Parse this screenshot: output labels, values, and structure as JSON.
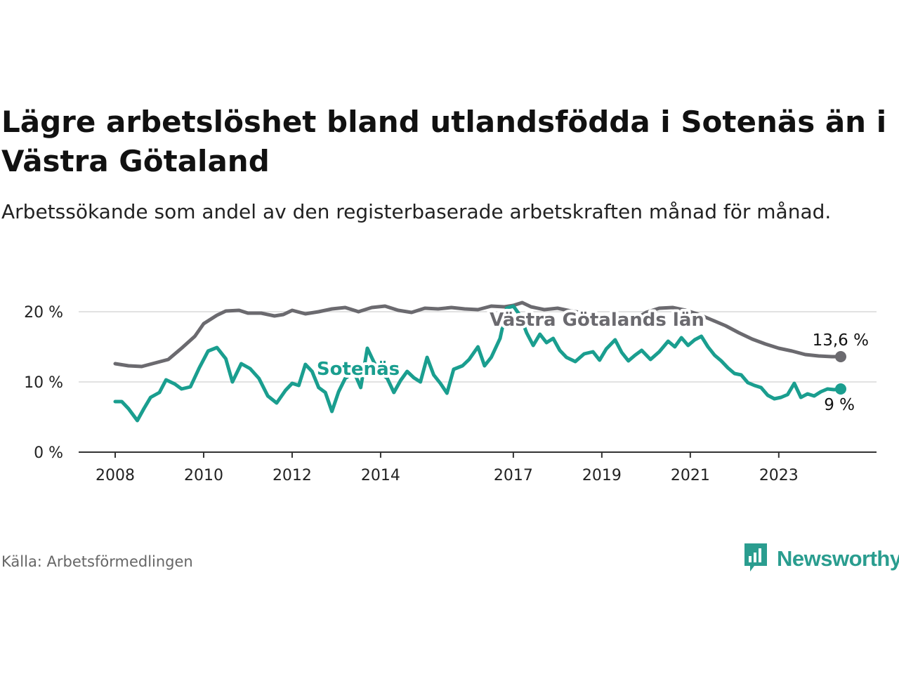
{
  "title": "Lägre arbetslöshet bland utlandsfödda i Sotenäs än i Västra Götaland",
  "subtitle": "Arbetssökande som andel av den registerbaserade arbetskraften månad för månad.",
  "source": "Källa: Arbetsförmedlingen",
  "brand": {
    "name": "Newsworthy",
    "icon": "newsworthy-logo-icon",
    "color": "#2a9d8f"
  },
  "chart_data": {
    "type": "line",
    "title": "Lägre arbetslöshet bland utlandsfödda i Sotenäs än i Västra Götaland",
    "xlabel": "",
    "ylabel": "",
    "ylim": [
      0,
      22
    ],
    "xlim": [
      2008,
      2024.6
    ],
    "y_ticks": [
      {
        "value": 0,
        "label": "0 %"
      },
      {
        "value": 10,
        "label": "10 %"
      },
      {
        "value": 20,
        "label": "20 %"
      }
    ],
    "x_ticks": [
      {
        "value": 2008,
        "label": "2008"
      },
      {
        "value": 2010,
        "label": "2010"
      },
      {
        "value": 2012,
        "label": "2012"
      },
      {
        "value": 2014,
        "label": "2014"
      },
      {
        "value": 2017,
        "label": "2017"
      },
      {
        "value": 2019,
        "label": "2019"
      },
      {
        "value": 2021,
        "label": "2021"
      },
      {
        "value": 2023,
        "label": "2023"
      }
    ],
    "grid": true,
    "series": [
      {
        "name": "Västra Götalands län",
        "color": "#6b6a6f",
        "end_label": "13,6 %",
        "points": [
          [
            2008.0,
            12.6
          ],
          [
            2008.3,
            12.3
          ],
          [
            2008.6,
            12.2
          ],
          [
            2008.9,
            12.7
          ],
          [
            2009.2,
            13.2
          ],
          [
            2009.5,
            14.8
          ],
          [
            2009.8,
            16.5
          ],
          [
            2010.0,
            18.3
          ],
          [
            2010.3,
            19.5
          ],
          [
            2010.5,
            20.1
          ],
          [
            2010.8,
            20.2
          ],
          [
            2011.0,
            19.8
          ],
          [
            2011.3,
            19.8
          ],
          [
            2011.6,
            19.4
          ],
          [
            2011.8,
            19.6
          ],
          [
            2012.0,
            20.2
          ],
          [
            2012.3,
            19.7
          ],
          [
            2012.6,
            20.0
          ],
          [
            2012.9,
            20.4
          ],
          [
            2013.2,
            20.6
          ],
          [
            2013.5,
            20.0
          ],
          [
            2013.8,
            20.6
          ],
          [
            2014.1,
            20.8
          ],
          [
            2014.4,
            20.2
          ],
          [
            2014.7,
            19.9
          ],
          [
            2015.0,
            20.5
          ],
          [
            2015.3,
            20.4
          ],
          [
            2015.6,
            20.6
          ],
          [
            2015.9,
            20.4
          ],
          [
            2016.2,
            20.3
          ],
          [
            2016.5,
            20.8
          ],
          [
            2016.8,
            20.7
          ],
          [
            2017.0,
            20.9
          ],
          [
            2017.2,
            21.3
          ],
          [
            2017.4,
            20.7
          ],
          [
            2017.7,
            20.3
          ],
          [
            2018.0,
            20.5
          ],
          [
            2018.3,
            20.1
          ],
          [
            2018.6,
            19.8
          ],
          [
            2018.9,
            19.4
          ],
          [
            2019.2,
            19.4
          ],
          [
            2019.5,
            19.0
          ],
          [
            2019.8,
            19.1
          ],
          [
            2020.0,
            19.9
          ],
          [
            2020.3,
            20.5
          ],
          [
            2020.6,
            20.6
          ],
          [
            2020.9,
            20.2
          ],
          [
            2021.2,
            19.6
          ],
          [
            2021.5,
            18.8
          ],
          [
            2021.8,
            18.0
          ],
          [
            2022.1,
            17.0
          ],
          [
            2022.4,
            16.1
          ],
          [
            2022.7,
            15.4
          ],
          [
            2023.0,
            14.8
          ],
          [
            2023.3,
            14.4
          ],
          [
            2023.6,
            13.9
          ],
          [
            2023.9,
            13.7
          ],
          [
            2024.2,
            13.6
          ],
          [
            2024.4,
            13.6
          ]
        ]
      },
      {
        "name": "Sotenäs",
        "color": "#1a9e8f",
        "end_label": "9 %",
        "points": [
          [
            2008.0,
            7.2
          ],
          [
            2008.15,
            7.2
          ],
          [
            2008.3,
            6.2
          ],
          [
            2008.5,
            4.5
          ],
          [
            2008.65,
            6.2
          ],
          [
            2008.8,
            7.8
          ],
          [
            2009.0,
            8.5
          ],
          [
            2009.15,
            10.3
          ],
          [
            2009.35,
            9.7
          ],
          [
            2009.5,
            9.0
          ],
          [
            2009.7,
            9.3
          ],
          [
            2009.9,
            12.0
          ],
          [
            2010.1,
            14.4
          ],
          [
            2010.3,
            14.9
          ],
          [
            2010.5,
            13.3
          ],
          [
            2010.65,
            10.0
          ],
          [
            2010.85,
            12.6
          ],
          [
            2011.05,
            11.9
          ],
          [
            2011.25,
            10.5
          ],
          [
            2011.45,
            8.0
          ],
          [
            2011.65,
            7.0
          ],
          [
            2011.85,
            8.8
          ],
          [
            2012.0,
            9.8
          ],
          [
            2012.15,
            9.5
          ],
          [
            2012.3,
            12.5
          ],
          [
            2012.45,
            11.5
          ],
          [
            2012.6,
            9.2
          ],
          [
            2012.75,
            8.5
          ],
          [
            2012.9,
            5.8
          ],
          [
            2013.05,
            8.6
          ],
          [
            2013.2,
            10.5
          ],
          [
            2013.4,
            11.4
          ],
          [
            2013.55,
            9.2
          ],
          [
            2013.7,
            14.8
          ],
          [
            2013.85,
            12.8
          ],
          [
            2014.0,
            11.3
          ],
          [
            2014.15,
            10.5
          ],
          [
            2014.3,
            8.5
          ],
          [
            2014.45,
            10.2
          ],
          [
            2014.6,
            11.5
          ],
          [
            2014.75,
            10.6
          ],
          [
            2014.9,
            10.0
          ],
          [
            2015.05,
            13.5
          ],
          [
            2015.2,
            11.0
          ],
          [
            2015.35,
            9.8
          ],
          [
            2015.5,
            8.4
          ],
          [
            2015.65,
            11.8
          ],
          [
            2015.85,
            12.3
          ],
          [
            2016.0,
            13.2
          ],
          [
            2016.2,
            15.0
          ],
          [
            2016.35,
            12.3
          ],
          [
            2016.5,
            13.5
          ],
          [
            2016.7,
            16.2
          ],
          [
            2016.85,
            20.5
          ],
          [
            2017.0,
            20.8
          ],
          [
            2017.15,
            19.5
          ],
          [
            2017.3,
            17.0
          ],
          [
            2017.45,
            15.2
          ],
          [
            2017.6,
            16.8
          ],
          [
            2017.75,
            15.6
          ],
          [
            2017.9,
            16.2
          ],
          [
            2018.05,
            14.5
          ],
          [
            2018.2,
            13.5
          ],
          [
            2018.4,
            12.9
          ],
          [
            2018.6,
            14.0
          ],
          [
            2018.8,
            14.3
          ],
          [
            2018.95,
            13.1
          ],
          [
            2019.1,
            14.7
          ],
          [
            2019.3,
            16.0
          ],
          [
            2019.45,
            14.2
          ],
          [
            2019.6,
            13.0
          ],
          [
            2019.75,
            13.8
          ],
          [
            2019.9,
            14.5
          ],
          [
            2020.1,
            13.2
          ],
          [
            2020.3,
            14.3
          ],
          [
            2020.5,
            15.8
          ],
          [
            2020.65,
            15.0
          ],
          [
            2020.8,
            16.3
          ],
          [
            2020.95,
            15.2
          ],
          [
            2021.1,
            16.0
          ],
          [
            2021.25,
            16.5
          ],
          [
            2021.4,
            15.0
          ],
          [
            2021.55,
            13.8
          ],
          [
            2021.7,
            13.0
          ],
          [
            2021.85,
            12.0
          ],
          [
            2022.0,
            11.2
          ],
          [
            2022.15,
            11.0
          ],
          [
            2022.3,
            9.9
          ],
          [
            2022.45,
            9.5
          ],
          [
            2022.6,
            9.2
          ],
          [
            2022.75,
            8.1
          ],
          [
            2022.9,
            7.6
          ],
          [
            2023.05,
            7.8
          ],
          [
            2023.2,
            8.2
          ],
          [
            2023.35,
            9.8
          ],
          [
            2023.5,
            7.8
          ],
          [
            2023.65,
            8.3
          ],
          [
            2023.8,
            8.0
          ],
          [
            2023.95,
            8.6
          ],
          [
            2024.1,
            9.0
          ],
          [
            2024.25,
            8.9
          ],
          [
            2024.4,
            9.0
          ]
        ]
      }
    ],
    "annotations": [
      {
        "text": "Västra Götalands län",
        "series": "Västra Götalands län"
      },
      {
        "text": "Sotenäs",
        "series": "Sotenäs"
      }
    ]
  }
}
